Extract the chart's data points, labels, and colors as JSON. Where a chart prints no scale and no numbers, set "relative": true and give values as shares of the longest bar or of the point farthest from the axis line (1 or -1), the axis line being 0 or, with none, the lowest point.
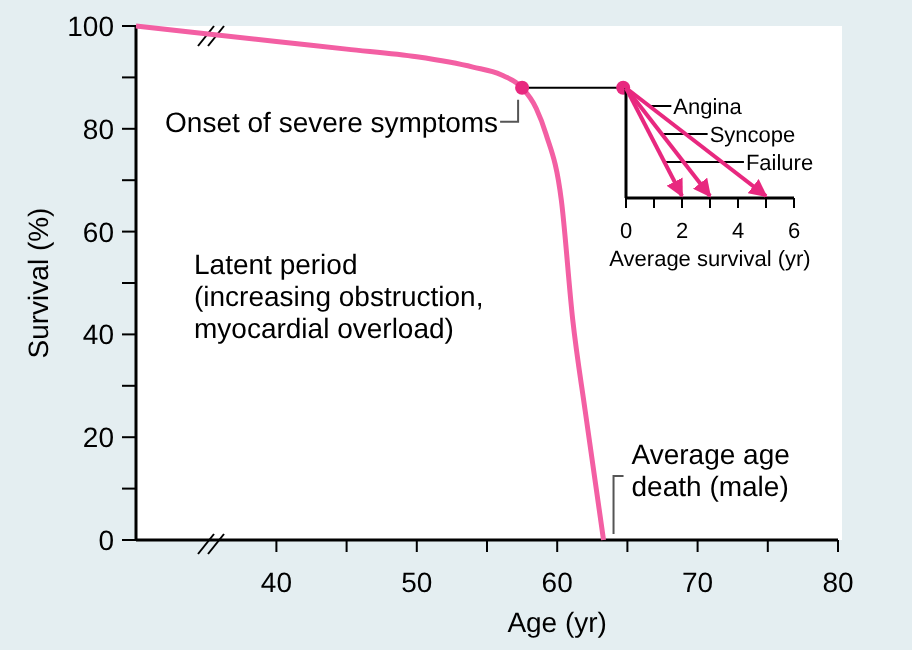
{
  "chart_data": [
    {
      "type": "line",
      "xlabel": "Age (yr)",
      "ylabel": "Survival (%)",
      "xlim": [
        30,
        80
      ],
      "ylim": [
        0,
        100
      ],
      "xticks": [
        40,
        {
          "value": 45,
          "label": null
        },
        50,
        {
          "value": 55,
          "label": null
        },
        60,
        {
          "value": 65,
          "label": null
        },
        70,
        {
          "value": 75,
          "label": null
        },
        80
      ],
      "yticks": [
        0,
        {
          "value": 10,
          "label": null
        },
        20,
        {
          "value": 30,
          "label": null
        },
        40,
        {
          "value": 50,
          "label": null
        },
        60,
        {
          "value": 70,
          "label": null
        },
        80,
        {
          "value": 90,
          "label": null
        },
        100
      ],
      "grid": false,
      "series": [
        {
          "type": "line",
          "color": "#f35fa3",
          "x": [
            30,
            34,
            40,
            45,
            50,
            54,
            56,
            57.5,
            58.5,
            59.2,
            60.3,
            61.1,
            62,
            63.3
          ],
          "values": [
            100,
            98.8,
            97,
            95.5,
            94,
            92,
            90.5,
            88,
            84,
            79,
            66,
            43,
            25,
            0
          ]
        },
        {
          "type": "scatter",
          "color": "#e8287f",
          "marker": "circle",
          "x": [
            57.5,
            64.7
          ],
          "values": [
            88,
            88
          ]
        }
      ],
      "annotations": [
        {
          "text": "Onset of severe symptoms",
          "x": 57.5,
          "y": 88
        },
        "Latent period (increasing obstruction, myocardial overload)",
        {
          "text": "Average age death (male)",
          "x": 63.3,
          "y": 0
        }
      ]
    },
    {
      "type": "line",
      "relative": true,
      "xlabel": "Average survival (yr)",
      "xlim": [
        0,
        6
      ],
      "series": [
        {
          "name": "Angina",
          "color": "#e8287f",
          "x": [
            0,
            5
          ],
          "values": [
            1,
            0
          ]
        },
        {
          "name": "Syncope",
          "color": "#e8287f",
          "x": [
            0,
            3
          ],
          "values": [
            1,
            0
          ]
        },
        {
          "name": "Failure",
          "color": "#e8287f",
          "x": [
            0,
            2
          ],
          "values": [
            1,
            0
          ]
        }
      ],
      "xticks": [
        0,
        {
          "value": 1,
          "label": null
        },
        2,
        {
          "value": 3,
          "label": null
        },
        4,
        {
          "value": 5,
          "label": null
        },
        6
      ]
    }
  ]
}
